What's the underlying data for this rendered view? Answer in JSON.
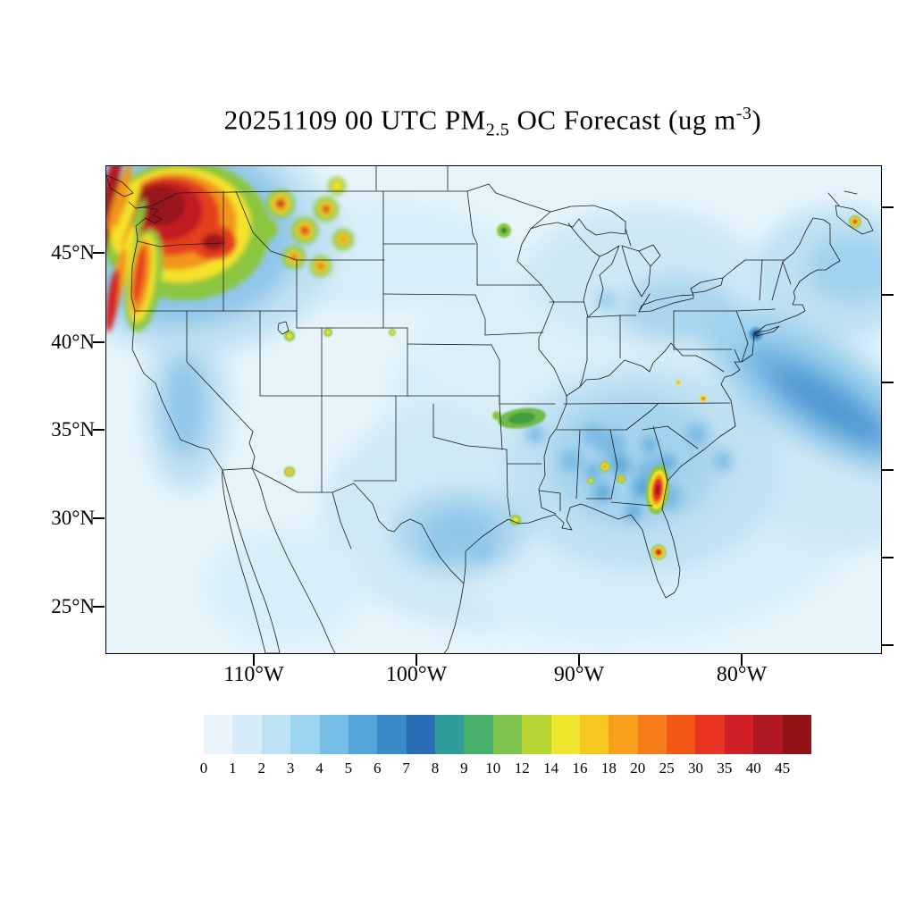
{
  "title": {
    "prefix": "20251109 00 UTC PM",
    "subscript": "2.5",
    "middle": " OC Forecast (ug m",
    "superscript": "-3",
    "suffix": ")"
  },
  "axes": {
    "lat_ticks": [
      "45°N",
      "40°N",
      "35°N",
      "30°N",
      "25°N"
    ],
    "lon_ticks": [
      "110°W",
      "100°W",
      "90°W",
      "80°W"
    ]
  },
  "colorbar": {
    "tick_labels": [
      "0",
      "1",
      "2",
      "3",
      "4",
      "5",
      "6",
      "7",
      "8",
      "9",
      "10",
      "12",
      "14",
      "16",
      "18",
      "20",
      "25",
      "30",
      "35",
      "40",
      "45"
    ],
    "segment_colors": [
      "#e9f5fb",
      "#d6ecf8",
      "#bce2f4",
      "#9cd3ee",
      "#76bee5",
      "#54a5da",
      "#3b8bc9",
      "#2b6eb6",
      "#2f9e9b",
      "#49b06b",
      "#7cc24d",
      "#b5d432",
      "#eee52d",
      "#f6c81f",
      "#f8a01b",
      "#f67c19",
      "#f25716",
      "#e93423",
      "#d01f26",
      "#b01722",
      "#8e1216"
    ]
  },
  "map_colors": {
    "field_base": "#e7f5fb",
    "boundary_line": "#1b1b1b"
  }
}
